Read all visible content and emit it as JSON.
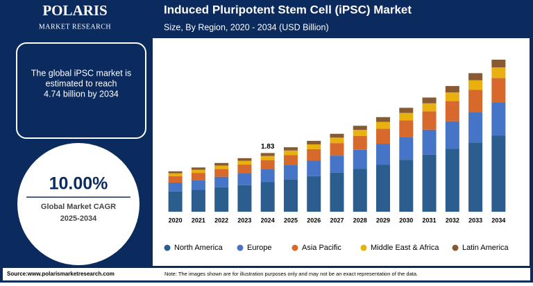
{
  "brand": {
    "name": "POLARIS",
    "tagline": "MARKET RESEARCH"
  },
  "callout": [
    "The global iPSC market is",
    "estimated to reach",
    "4.74 billion by 2034"
  ],
  "cagr": {
    "value": "10.00%",
    "label": "Global Market CAGR",
    "period": "2025-2034"
  },
  "footer": {
    "source": "Source:www.polarismarketresearch.com",
    "note": "Note: The images shown are for illustration purposes only and may not be an exact representation of the data."
  },
  "chart_data": {
    "type": "stacked_bar",
    "title": "Induced Pluripotent Stem Cell (iPSC) Market",
    "subtitle": "Size, By Region, 2020 - 2034 (USD Billion)",
    "categories": [
      "2020",
      "2021",
      "2022",
      "2023",
      "2024",
      "2025",
      "2026",
      "2027",
      "2028",
      "2029",
      "2030",
      "2031",
      "2032",
      "2033",
      "2034"
    ],
    "series": [
      {
        "name": "North America",
        "color": "#2c5d8f",
        "values": [
          0.63,
          0.69,
          0.76,
          0.83,
          0.92,
          1.01,
          1.11,
          1.22,
          1.34,
          1.47,
          1.62,
          1.78,
          1.96,
          2.16,
          2.37
        ]
      },
      {
        "name": "Europe",
        "color": "#4674c6",
        "values": [
          0.28,
          0.3,
          0.33,
          0.37,
          0.4,
          0.44,
          0.49,
          0.53,
          0.59,
          0.65,
          0.71,
          0.78,
          0.86,
          0.95,
          1.04
        ]
      },
      {
        "name": "Asia Pacific",
        "color": "#d8692c",
        "values": [
          0.2,
          0.22,
          0.24,
          0.27,
          0.29,
          0.32,
          0.35,
          0.39,
          0.43,
          0.47,
          0.52,
          0.57,
          0.63,
          0.69,
          0.76
        ]
      },
      {
        "name": "Middle East & Africa",
        "color": "#e9b10f",
        "values": [
          0.09,
          0.1,
          0.11,
          0.12,
          0.13,
          0.14,
          0.15,
          0.17,
          0.19,
          0.21,
          0.23,
          0.25,
          0.27,
          0.3,
          0.33
        ]
      },
      {
        "name": "Latin America",
        "color": "#875a32",
        "values": [
          0.06,
          0.07,
          0.08,
          0.08,
          0.09,
          0.1,
          0.11,
          0.12,
          0.13,
          0.15,
          0.16,
          0.18,
          0.2,
          0.22,
          0.24
        ]
      }
    ],
    "annotations": [
      {
        "x": "2024",
        "text": "1.83"
      }
    ]
  }
}
